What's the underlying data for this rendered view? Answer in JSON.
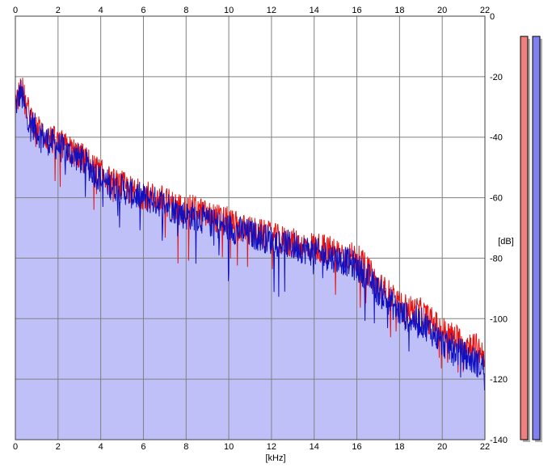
{
  "chart_data": {
    "type": "area",
    "xlabel": "[kHz]",
    "ylabel": "[dB]",
    "xlim": [
      0,
      22
    ],
    "ylim": [
      -140,
      0
    ],
    "x_ticks": [
      "0",
      "2",
      "4",
      "6",
      "8",
      "10",
      "12",
      "14",
      "16",
      "18",
      "20",
      "22"
    ],
    "y_ticks": [
      "0",
      "-20",
      "-40",
      "-60",
      "-80",
      "-100",
      "-120",
      "-140"
    ],
    "grid": true,
    "series": [
      {
        "color": "#e81010",
        "x": [
          0,
          0.25,
          0.5,
          1,
          1.5,
          2,
          2.5,
          3,
          3.5,
          4,
          4.5,
          5,
          5.5,
          6,
          6.5,
          7,
          7.5,
          8,
          8.5,
          9,
          9.5,
          10,
          10.5,
          11,
          11.5,
          12,
          12.5,
          13,
          13.5,
          14,
          14.5,
          15,
          15.5,
          16,
          16.5,
          17,
          17.5,
          18,
          18.5,
          19,
          19.5,
          20,
          20.5,
          21,
          21.5,
          22
        ],
        "values": [
          -30,
          -22,
          -30,
          -37,
          -40,
          -42,
          -44,
          -46,
          -49,
          -52,
          -55,
          -56,
          -58,
          -59,
          -60,
          -61,
          -63,
          -64,
          -64,
          -66,
          -67,
          -68,
          -70,
          -71,
          -72,
          -73,
          -74,
          -75,
          -76,
          -76,
          -77,
          -78,
          -79,
          -80,
          -84,
          -89,
          -92,
          -96,
          -97,
          -98,
          -101,
          -104,
          -106,
          -108,
          -109,
          -112
        ]
      },
      {
        "color": "#1010c0",
        "x": [
          0,
          0.25,
          0.5,
          1,
          1.5,
          2,
          2.5,
          3,
          3.5,
          4,
          4.5,
          5,
          5.5,
          6,
          6.5,
          7,
          7.5,
          8,
          8.5,
          9,
          9.5,
          10,
          10.5,
          11,
          11.5,
          12,
          12.5,
          13,
          13.5,
          14,
          14.5,
          15,
          15.5,
          16,
          16.5,
          17,
          17.5,
          18,
          18.5,
          19,
          19.5,
          20,
          20.5,
          21,
          21.5,
          22
        ],
        "values": [
          -30,
          -25,
          -32,
          -38,
          -41,
          -43,
          -45,
          -47,
          -50,
          -54,
          -56,
          -57,
          -59,
          -60,
          -61,
          -62,
          -64,
          -66,
          -66,
          -68,
          -69,
          -70,
          -71,
          -72,
          -73,
          -74,
          -75,
          -76,
          -77,
          -78,
          -79,
          -80,
          -81,
          -83,
          -86,
          -91,
          -94,
          -98,
          -100,
          -101,
          -104,
          -108,
          -110,
          -112,
          -114,
          -116
        ]
      }
    ],
    "fill_color": "#c0c0f8",
    "level_meters": [
      {
        "color": "#f08080",
        "level": 1.0
      },
      {
        "color": "#8080f0",
        "level": 1.0
      }
    ]
  }
}
